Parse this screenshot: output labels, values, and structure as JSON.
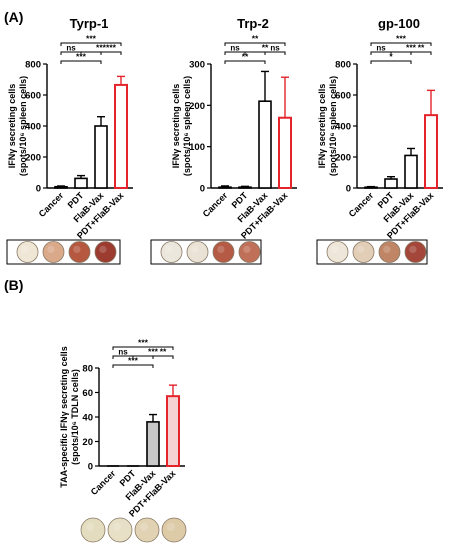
{
  "panel_labels": {
    "a": "(A)",
    "b": "(B)"
  },
  "colors": {
    "axis": "#000000",
    "highlight": "#e3242b",
    "gray_bar": "#c8c8c8",
    "pink_bar": "#f6d3d3",
    "well_bg": "#efe9d8"
  },
  "chart_data": [
    {
      "type": "bar",
      "title": "Tyrp-1",
      "ylabel": [
        "IFNγ secreting cells",
        "(spots/10⁶ spleen cells)"
      ],
      "ylim": [
        0,
        800
      ],
      "yticks": [
        0,
        200,
        400,
        600,
        800
      ],
      "categories": [
        "Cancer",
        "PDT",
        "FlaB-Vax",
        "PDT+FlaB-Vax"
      ],
      "values": [
        8,
        62,
        400,
        665
      ],
      "errors": [
        5,
        18,
        60,
        55
      ],
      "significance": [
        {
          "from": 0,
          "to": 3,
          "label": "***"
        },
        {
          "from": 0,
          "to": 1,
          "label": "ns"
        },
        {
          "from": 1,
          "to": 3,
          "label": "***"
        },
        {
          "from": 2,
          "to": 3,
          "label": "***"
        },
        {
          "from": 0,
          "to": 2,
          "label": "***"
        }
      ],
      "wells": [
        "#efe6d6",
        "#d9a98a",
        "#b5583f",
        "#9c3b30"
      ]
    },
    {
      "type": "bar",
      "title": "Trp-2",
      "ylabel": [
        "IFNγ secreting cells",
        "(spots/10⁶ spleen cells)"
      ],
      "ylim": [
        0,
        300
      ],
      "yticks": [
        0,
        100,
        200,
        300
      ],
      "categories": [
        "Cancer",
        "PDT",
        "FlaB-Vax",
        "PDT+FlaB-Vax"
      ],
      "values": [
        2,
        2,
        210,
        170
      ],
      "errors": [
        3,
        2,
        72,
        98
      ],
      "significance": [
        {
          "from": 0,
          "to": 3,
          "label": "**"
        },
        {
          "from": 0,
          "to": 1,
          "label": "ns"
        },
        {
          "from": 1,
          "to": 3,
          "label": "**"
        },
        {
          "from": 2,
          "to": 3,
          "label": "ns"
        },
        {
          "from": 0,
          "to": 2,
          "label": "**"
        }
      ],
      "wells": [
        "#ece7dc",
        "#e9e2d5",
        "#b45a45",
        "#c06f58"
      ]
    },
    {
      "type": "bar",
      "title": "gp-100",
      "ylabel": [
        "IFNγ secreting cells",
        "(spots/10⁶ spleen cells)"
      ],
      "ylim": [
        0,
        800
      ],
      "yticks": [
        0,
        200,
        400,
        600,
        800
      ],
      "categories": [
        "Cancer",
        "PDT",
        "FlaB-Vax",
        "PDT+FlaB-Vax"
      ],
      "values": [
        5,
        58,
        210,
        470
      ],
      "errors": [
        4,
        15,
        45,
        160
      ],
      "significance": [
        {
          "from": 0,
          "to": 3,
          "label": "***"
        },
        {
          "from": 0,
          "to": 1,
          "label": "ns"
        },
        {
          "from": 1,
          "to": 3,
          "label": "***"
        },
        {
          "from": 2,
          "to": 3,
          "label": "**"
        },
        {
          "from": 0,
          "to": 2,
          "label": "*"
        }
      ],
      "wells": [
        "#eee6d8",
        "#e2cdb6",
        "#c08565",
        "#a4473a"
      ]
    },
    {
      "type": "bar",
      "title": "",
      "ylabel": [
        "TAA-specific IFNγ secreting cells",
        "(spots/10⁶ TDLN cells)"
      ],
      "ylim": [
        0,
        80
      ],
      "yticks": [
        0,
        20,
        40,
        60,
        80
      ],
      "categories": [
        "Cancer",
        "PDT",
        "FlaB-Vax",
        "PDT+FlaB-Vax"
      ],
      "values": [
        0,
        0,
        36,
        57
      ],
      "errors": [
        0,
        0,
        6,
        9
      ],
      "significance": [
        {
          "from": 0,
          "to": 3,
          "label": "***"
        },
        {
          "from": 0,
          "to": 1,
          "label": "ns"
        },
        {
          "from": 1,
          "to": 3,
          "label": "***"
        },
        {
          "from": 2,
          "to": 3,
          "label": "**"
        },
        {
          "from": 0,
          "to": 2,
          "label": "***"
        }
      ],
      "wells": [
        "#e4dcbf",
        "#e7dfc6",
        "#e0d2b2",
        "#ddcaa6"
      ]
    }
  ]
}
